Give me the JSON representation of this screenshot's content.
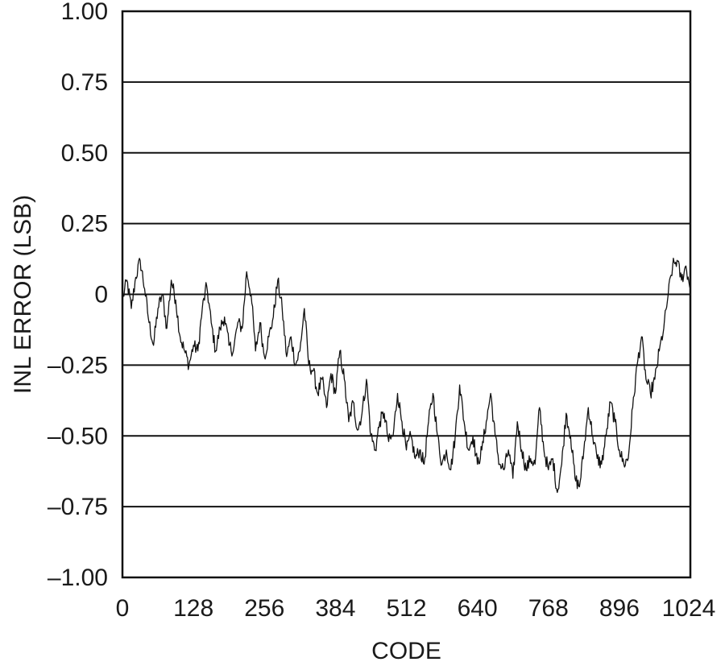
{
  "chart_data": {
    "type": "line",
    "xlabel": "CODE",
    "ylabel": "INL ERROR (LSB)",
    "xlim": [
      0,
      1024
    ],
    "ylim": [
      -1.0,
      1.0
    ],
    "x_ticks": [
      0,
      128,
      256,
      384,
      512,
      640,
      768,
      896,
      1024
    ],
    "x_tick_labels": [
      "0",
      "128",
      "256",
      "384",
      "512",
      "640",
      "768",
      "896",
      "1024"
    ],
    "y_ticks": [
      1.0,
      0.75,
      0.5,
      0.25,
      0,
      -0.25,
      -0.5,
      -0.75,
      -1.0
    ],
    "y_tick_labels": [
      "1.00",
      "0.75",
      "0.50",
      "0.25",
      "0",
      "–0.25",
      "–0.50",
      "–0.75",
      "–1.00"
    ],
    "grid": "horizontal",
    "series": [
      {
        "x": [
          0,
          8,
          16,
          24,
          32,
          40,
          48,
          56,
          64,
          72,
          80,
          88,
          96,
          104,
          112,
          120,
          128,
          136,
          144,
          152,
          160,
          168,
          176,
          184,
          192,
          200,
          208,
          216,
          224,
          232,
          240,
          248,
          256,
          264,
          272,
          280,
          288,
          296,
          304,
          312,
          320,
          328,
          336,
          344,
          352,
          360,
          368,
          376,
          384,
          392,
          400,
          408,
          416,
          424,
          432,
          440,
          448,
          456,
          464,
          472,
          480,
          488,
          496,
          504,
          512,
          520,
          528,
          536,
          544,
          552,
          560,
          568,
          576,
          584,
          592,
          600,
          608,
          616,
          624,
          632,
          640,
          648,
          656,
          664,
          672,
          680,
          688,
          696,
          704,
          712,
          720,
          728,
          736,
          744,
          752,
          760,
          768,
          776,
          784,
          792,
          800,
          808,
          816,
          824,
          832,
          840,
          848,
          856,
          864,
          872,
          880,
          888,
          896,
          904,
          912,
          920,
          928,
          936,
          944,
          952,
          960,
          968,
          976,
          984,
          992,
          1000,
          1008,
          1016,
          1024
        ],
        "y": [
          -0.02,
          0.05,
          -0.05,
          0.06,
          0.12,
          0.02,
          -0.1,
          -0.18,
          -0.05,
          0.0,
          -0.12,
          0.05,
          -0.02,
          -0.15,
          -0.2,
          -0.25,
          -0.18,
          -0.2,
          -0.05,
          0.03,
          -0.1,
          -0.2,
          -0.12,
          -0.08,
          -0.18,
          -0.2,
          -0.1,
          -0.12,
          0.08,
          0.0,
          -0.2,
          -0.1,
          -0.22,
          -0.15,
          -0.08,
          0.05,
          -0.05,
          -0.22,
          -0.15,
          -0.25,
          -0.2,
          -0.05,
          -0.25,
          -0.27,
          -0.35,
          -0.3,
          -0.4,
          -0.28,
          -0.35,
          -0.2,
          -0.3,
          -0.45,
          -0.38,
          -0.48,
          -0.42,
          -0.3,
          -0.5,
          -0.55,
          -0.45,
          -0.42,
          -0.52,
          -0.5,
          -0.35,
          -0.45,
          -0.55,
          -0.5,
          -0.58,
          -0.55,
          -0.6,
          -0.45,
          -0.35,
          -0.5,
          -0.6,
          -0.55,
          -0.62,
          -0.5,
          -0.32,
          -0.45,
          -0.55,
          -0.5,
          -0.6,
          -0.55,
          -0.45,
          -0.35,
          -0.5,
          -0.6,
          -0.62,
          -0.55,
          -0.65,
          -0.45,
          -0.55,
          -0.62,
          -0.58,
          -0.6,
          -0.4,
          -0.55,
          -0.62,
          -0.58,
          -0.7,
          -0.6,
          -0.42,
          -0.5,
          -0.65,
          -0.68,
          -0.55,
          -0.4,
          -0.5,
          -0.58,
          -0.6,
          -0.5,
          -0.38,
          -0.45,
          -0.55,
          -0.6,
          -0.58,
          -0.4,
          -0.25,
          -0.15,
          -0.3,
          -0.35,
          -0.3,
          -0.2,
          -0.12,
          0.0,
          0.1,
          0.12,
          0.05,
          0.1,
          0.02
        ]
      }
    ]
  }
}
